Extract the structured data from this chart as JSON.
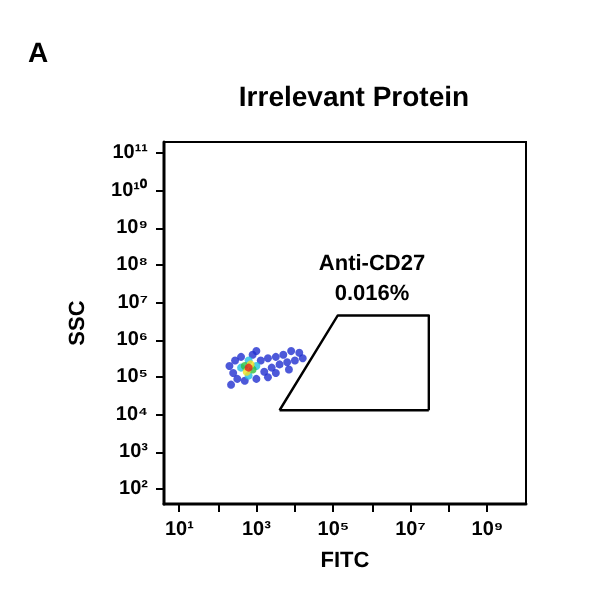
{
  "chart_data": {
    "type": "scatter",
    "title": "Irrelevant Protein",
    "xlabel": "FITC",
    "ylabel": "SSC",
    "log": "xy",
    "grid": false,
    "marker": "circle",
    "annotations": [
      "A",
      "Anti-CD27",
      "0.016%"
    ],
    "xlim": [
      4,
      10000000000
    ],
    "ylim": [
      40,
      200000000000
    ],
    "xticks": [
      {
        "value": 10,
        "label": "10¹"
      },
      {
        "value": 100,
        "label": null
      },
      {
        "value": 1000,
        "label": "10³"
      },
      {
        "value": 10000,
        "label": null
      },
      {
        "value": 100000,
        "label": "10⁵"
      },
      {
        "value": 1000000,
        "label": null
      },
      {
        "value": 10000000,
        "label": "10⁷"
      },
      {
        "value": 100000000,
        "label": null
      },
      {
        "value": 1000000000,
        "label": "10⁹"
      }
    ],
    "yticks": [
      {
        "value": 100,
        "label": "10²"
      },
      {
        "value": 1000,
        "label": "10³"
      },
      {
        "value": 10000,
        "label": "10⁴"
      },
      {
        "value": 100000,
        "label": "10⁵"
      },
      {
        "value": 1000000,
        "label": "10⁶"
      },
      {
        "value": 10000000,
        "label": "10⁷"
      },
      {
        "value": 100000000,
        "label": "10⁸"
      },
      {
        "value": 1000000000,
        "label": "10⁹"
      },
      {
        "value": 10000000000,
        "label": "10¹⁰"
      },
      {
        "value": 100000000000,
        "label": "10¹¹"
      }
    ],
    "series": [
      {
        "x": [
          200,
          250,
          280,
          320,
          400,
          500,
          800,
          1000,
          1300,
          1600,
          2000,
          2500,
          3200,
          4000,
          5000,
          6300,
          8000,
          10000,
          13000,
          16000,
          3200,
          2000,
          7000,
          220,
          1000,
          400,
          1000,
          630,
          630,
          500,
          800,
          560,
          710,
          630
        ],
        "values": [
          200000,
          130000,
          280000,
          90000,
          350000,
          80000,
          400000,
          90000,
          280000,
          140000,
          320000,
          180000,
          350000,
          220000,
          400000,
          250000,
          500000,
          280000,
          450000,
          320000,
          130000,
          100000,
          160000,
          63000,
          500000,
          180000,
          200000,
          280000,
          110000,
          200000,
          160000,
          140000,
          220000,
          180000
        ],
        "colors": [
          "#2030d0",
          "#2030d0",
          "#2030d0",
          "#2030d0",
          "#2030d0",
          "#2030d0",
          "#2030d0",
          "#2030d0",
          "#2030d0",
          "#2030d0",
          "#2030d0",
          "#2030d0",
          "#2030d0",
          "#2030d0",
          "#2030d0",
          "#2030d0",
          "#2030d0",
          "#2030d0",
          "#2030d0",
          "#2030d0",
          "#2030d0",
          "#2030d0",
          "#2030d0",
          "#2030d0",
          "#2030d0",
          "#20c0e0",
          "#20c0e0",
          "#20c0e0",
          "#20c0e0",
          "#30c040",
          "#30c040",
          "#f0e020",
          "#f0e020",
          "#e02020"
        ]
      },
      {
        "type": "line",
        "color": "#000000",
        "marker": "none",
        "x": [
          4000,
          130000,
          30000000,
          30000000
        ],
        "values": [
          13000,
          4500000,
          4500000,
          13000
        ]
      },
      {
        "type": "line",
        "color": "#000000",
        "marker": "none",
        "x": [
          4000,
          30000000
        ],
        "values": [
          13000,
          13000
        ]
      }
    ]
  }
}
